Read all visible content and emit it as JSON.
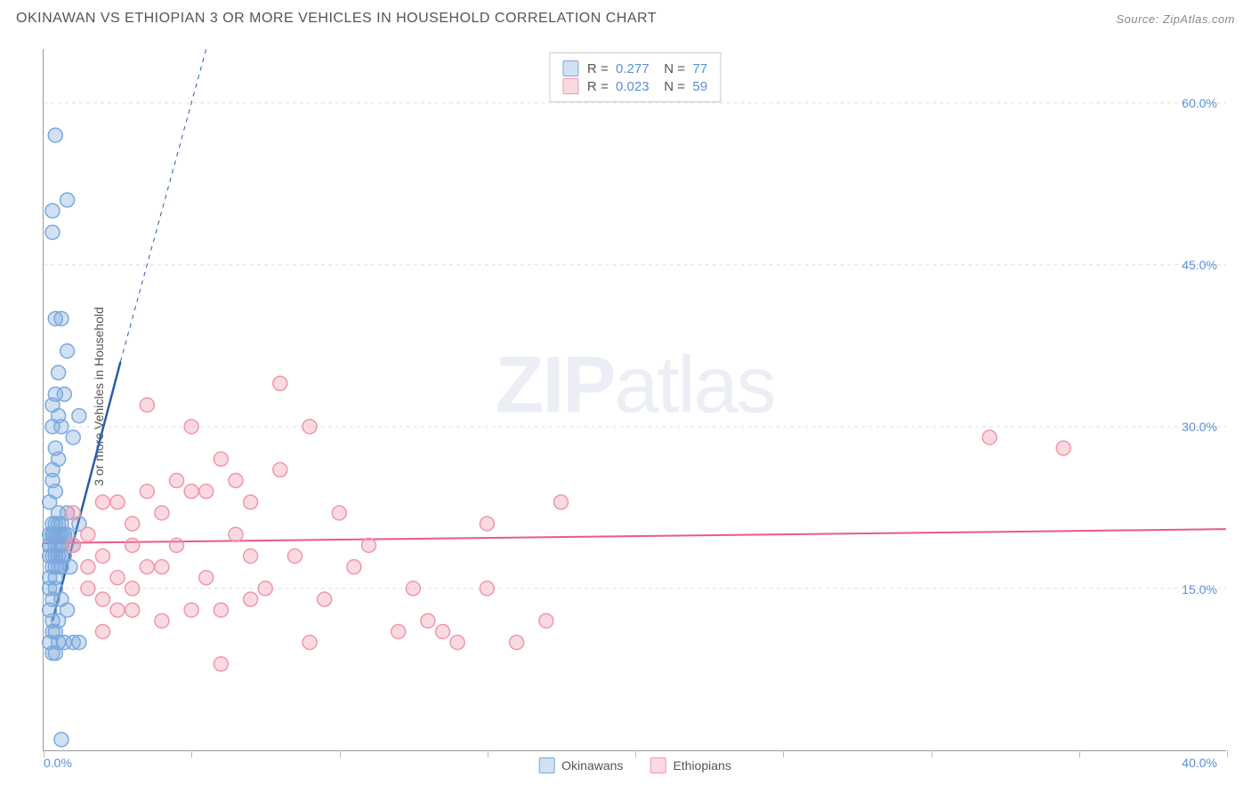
{
  "title": "OKINAWAN VS ETHIOPIAN 3 OR MORE VEHICLES IN HOUSEHOLD CORRELATION CHART",
  "source": "Source: ZipAtlas.com",
  "watermark": "ZIPatlas",
  "y_axis_label": "3 or more Vehicles in Household",
  "chart": {
    "type": "scatter",
    "xlim": [
      0,
      40
    ],
    "ylim": [
      0,
      65
    ],
    "x_ticks": [
      0,
      5,
      10,
      15,
      20,
      25,
      30,
      35,
      40
    ],
    "x_tick_labels_visible": {
      "0": "0.0%",
      "40": "40.0%"
    },
    "y_ticks": [
      15,
      30,
      45,
      60
    ],
    "y_tick_labels": {
      "15": "15.0%",
      "30": "30.0%",
      "45": "45.0%",
      "60": "60.0%"
    },
    "background_color": "#ffffff",
    "grid_color": "#dddddd",
    "axis_color": "#999999",
    "tick_label_color": "#5b8fd6",
    "marker_radius": 8,
    "marker_stroke_width": 1.5,
    "series": [
      {
        "name": "Okinawans",
        "fill_color": "rgba(123,168,222,0.35)",
        "stroke_color": "#7ba8de",
        "r_value": "0.277",
        "n_value": "77",
        "trend_line": {
          "x1": 0.3,
          "y1": 12,
          "x2": 2.6,
          "y2": 36,
          "color": "#2a5caa",
          "width": 2.5,
          "dash_ext": {
            "x2": 5.5,
            "y2": 65
          }
        },
        "points": [
          [
            0.2,
            19
          ],
          [
            0.3,
            20
          ],
          [
            0.2,
            18
          ],
          [
            0.4,
            21
          ],
          [
            0.3,
            17
          ],
          [
            0.5,
            22
          ],
          [
            0.6,
            19
          ],
          [
            0.4,
            16
          ],
          [
            0.3,
            25
          ],
          [
            0.2,
            15
          ],
          [
            0.5,
            18
          ],
          [
            0.7,
            20
          ],
          [
            0.3,
            14
          ],
          [
            0.4,
            19
          ],
          [
            0.2,
            13
          ],
          [
            0.6,
            17
          ],
          [
            0.3,
            12
          ],
          [
            0.4,
            11
          ],
          [
            0.2,
            10
          ],
          [
            0.5,
            10
          ],
          [
            0.7,
            10
          ],
          [
            0.3,
            9
          ],
          [
            0.4,
            9
          ],
          [
            1.0,
            10
          ],
          [
            1.2,
            10
          ],
          [
            0.3,
            26
          ],
          [
            0.5,
            27
          ],
          [
            0.4,
            28
          ],
          [
            0.6,
            30
          ],
          [
            0.3,
            32
          ],
          [
            0.7,
            33
          ],
          [
            0.5,
            35
          ],
          [
            0.8,
            37
          ],
          [
            0.4,
            40
          ],
          [
            0.6,
            40
          ],
          [
            0.3,
            30
          ],
          [
            0.5,
            31
          ],
          [
            0.4,
            33
          ],
          [
            1.0,
            29
          ],
          [
            1.2,
            31
          ],
          [
            0.2,
            23
          ],
          [
            0.4,
            24
          ],
          [
            0.6,
            21
          ],
          [
            0.8,
            22
          ],
          [
            1.0,
            19
          ],
          [
            1.2,
            21
          ],
          [
            0.3,
            20
          ],
          [
            0.5,
            19
          ],
          [
            0.7,
            18
          ],
          [
            0.9,
            17
          ],
          [
            0.4,
            15
          ],
          [
            0.6,
            14
          ],
          [
            0.8,
            13
          ],
          [
            0.3,
            11
          ],
          [
            0.5,
            12
          ],
          [
            0.2,
            16
          ],
          [
            0.4,
            17
          ],
          [
            0.6,
            18
          ],
          [
            0.3,
            50
          ],
          [
            0.8,
            51
          ],
          [
            0.4,
            57
          ],
          [
            0.3,
            48
          ],
          [
            0.6,
            1
          ],
          [
            0.3,
            20
          ],
          [
            0.5,
            20
          ],
          [
            0.7,
            20
          ],
          [
            0.4,
            20
          ],
          [
            0.2,
            20
          ],
          [
            0.6,
            20
          ],
          [
            0.8,
            20
          ],
          [
            0.3,
            21
          ],
          [
            0.5,
            21
          ],
          [
            0.4,
            18
          ],
          [
            0.6,
            19
          ],
          [
            0.2,
            19
          ],
          [
            0.3,
            18
          ],
          [
            0.5,
            17
          ]
        ]
      },
      {
        "name": "Ethiopians",
        "fill_color": "rgba(240,150,170,0.35)",
        "stroke_color": "#f096aa",
        "r_value": "0.023",
        "n_value": "59",
        "trend_line": {
          "x1": 0,
          "y1": 19.2,
          "x2": 40,
          "y2": 20.5,
          "color": "#e85a8a",
          "width": 2
        },
        "points": [
          [
            1.0,
            19
          ],
          [
            1.5,
            20
          ],
          [
            2.0,
            18
          ],
          [
            2.5,
            23
          ],
          [
            3.0,
            21
          ],
          [
            3.5,
            17
          ],
          [
            4.0,
            22
          ],
          [
            4.5,
            19
          ],
          [
            5.0,
            24
          ],
          [
            5.5,
            16
          ],
          [
            6.0,
            27
          ],
          [
            6.5,
            20
          ],
          [
            7.0,
            23
          ],
          [
            7.5,
            15
          ],
          [
            8.0,
            26
          ],
          [
            8.5,
            18
          ],
          [
            9.0,
            30
          ],
          [
            9.5,
            14
          ],
          [
            10.0,
            22
          ],
          [
            10.5,
            17
          ],
          [
            11.0,
            19
          ],
          [
            12.0,
            11
          ],
          [
            12.5,
            15
          ],
          [
            13.0,
            12
          ],
          [
            13.5,
            11
          ],
          [
            14.0,
            10
          ],
          [
            15.0,
            21
          ],
          [
            16.0,
            10
          ],
          [
            17.0,
            12
          ],
          [
            17.5,
            23
          ],
          [
            32.0,
            29
          ],
          [
            34.5,
            28
          ],
          [
            2.0,
            14
          ],
          [
            3.0,
            13
          ],
          [
            4.0,
            12
          ],
          [
            5.0,
            13
          ],
          [
            6.0,
            13
          ],
          [
            7.0,
            18
          ],
          [
            8.0,
            34
          ],
          [
            3.5,
            24
          ],
          [
            4.5,
            25
          ],
          [
            2.5,
            16
          ],
          [
            5.5,
            24
          ],
          [
            6.5,
            25
          ],
          [
            1.5,
            17
          ],
          [
            2.0,
            11
          ],
          [
            3.0,
            15
          ],
          [
            4.0,
            17
          ],
          [
            5.0,
            30
          ],
          [
            6.0,
            8
          ],
          [
            7.0,
            14
          ],
          [
            1.0,
            22
          ],
          [
            1.5,
            15
          ],
          [
            2.0,
            23
          ],
          [
            2.5,
            13
          ],
          [
            3.0,
            19
          ],
          [
            3.5,
            32
          ],
          [
            9.0,
            10
          ],
          [
            15.0,
            15
          ]
        ]
      }
    ]
  },
  "legend_top": {
    "r_label": "R",
    "n_label": "N",
    "eq": "="
  },
  "legend_bottom": [
    {
      "label": "Okinawans"
    },
    {
      "label": "Ethiopians"
    }
  ]
}
